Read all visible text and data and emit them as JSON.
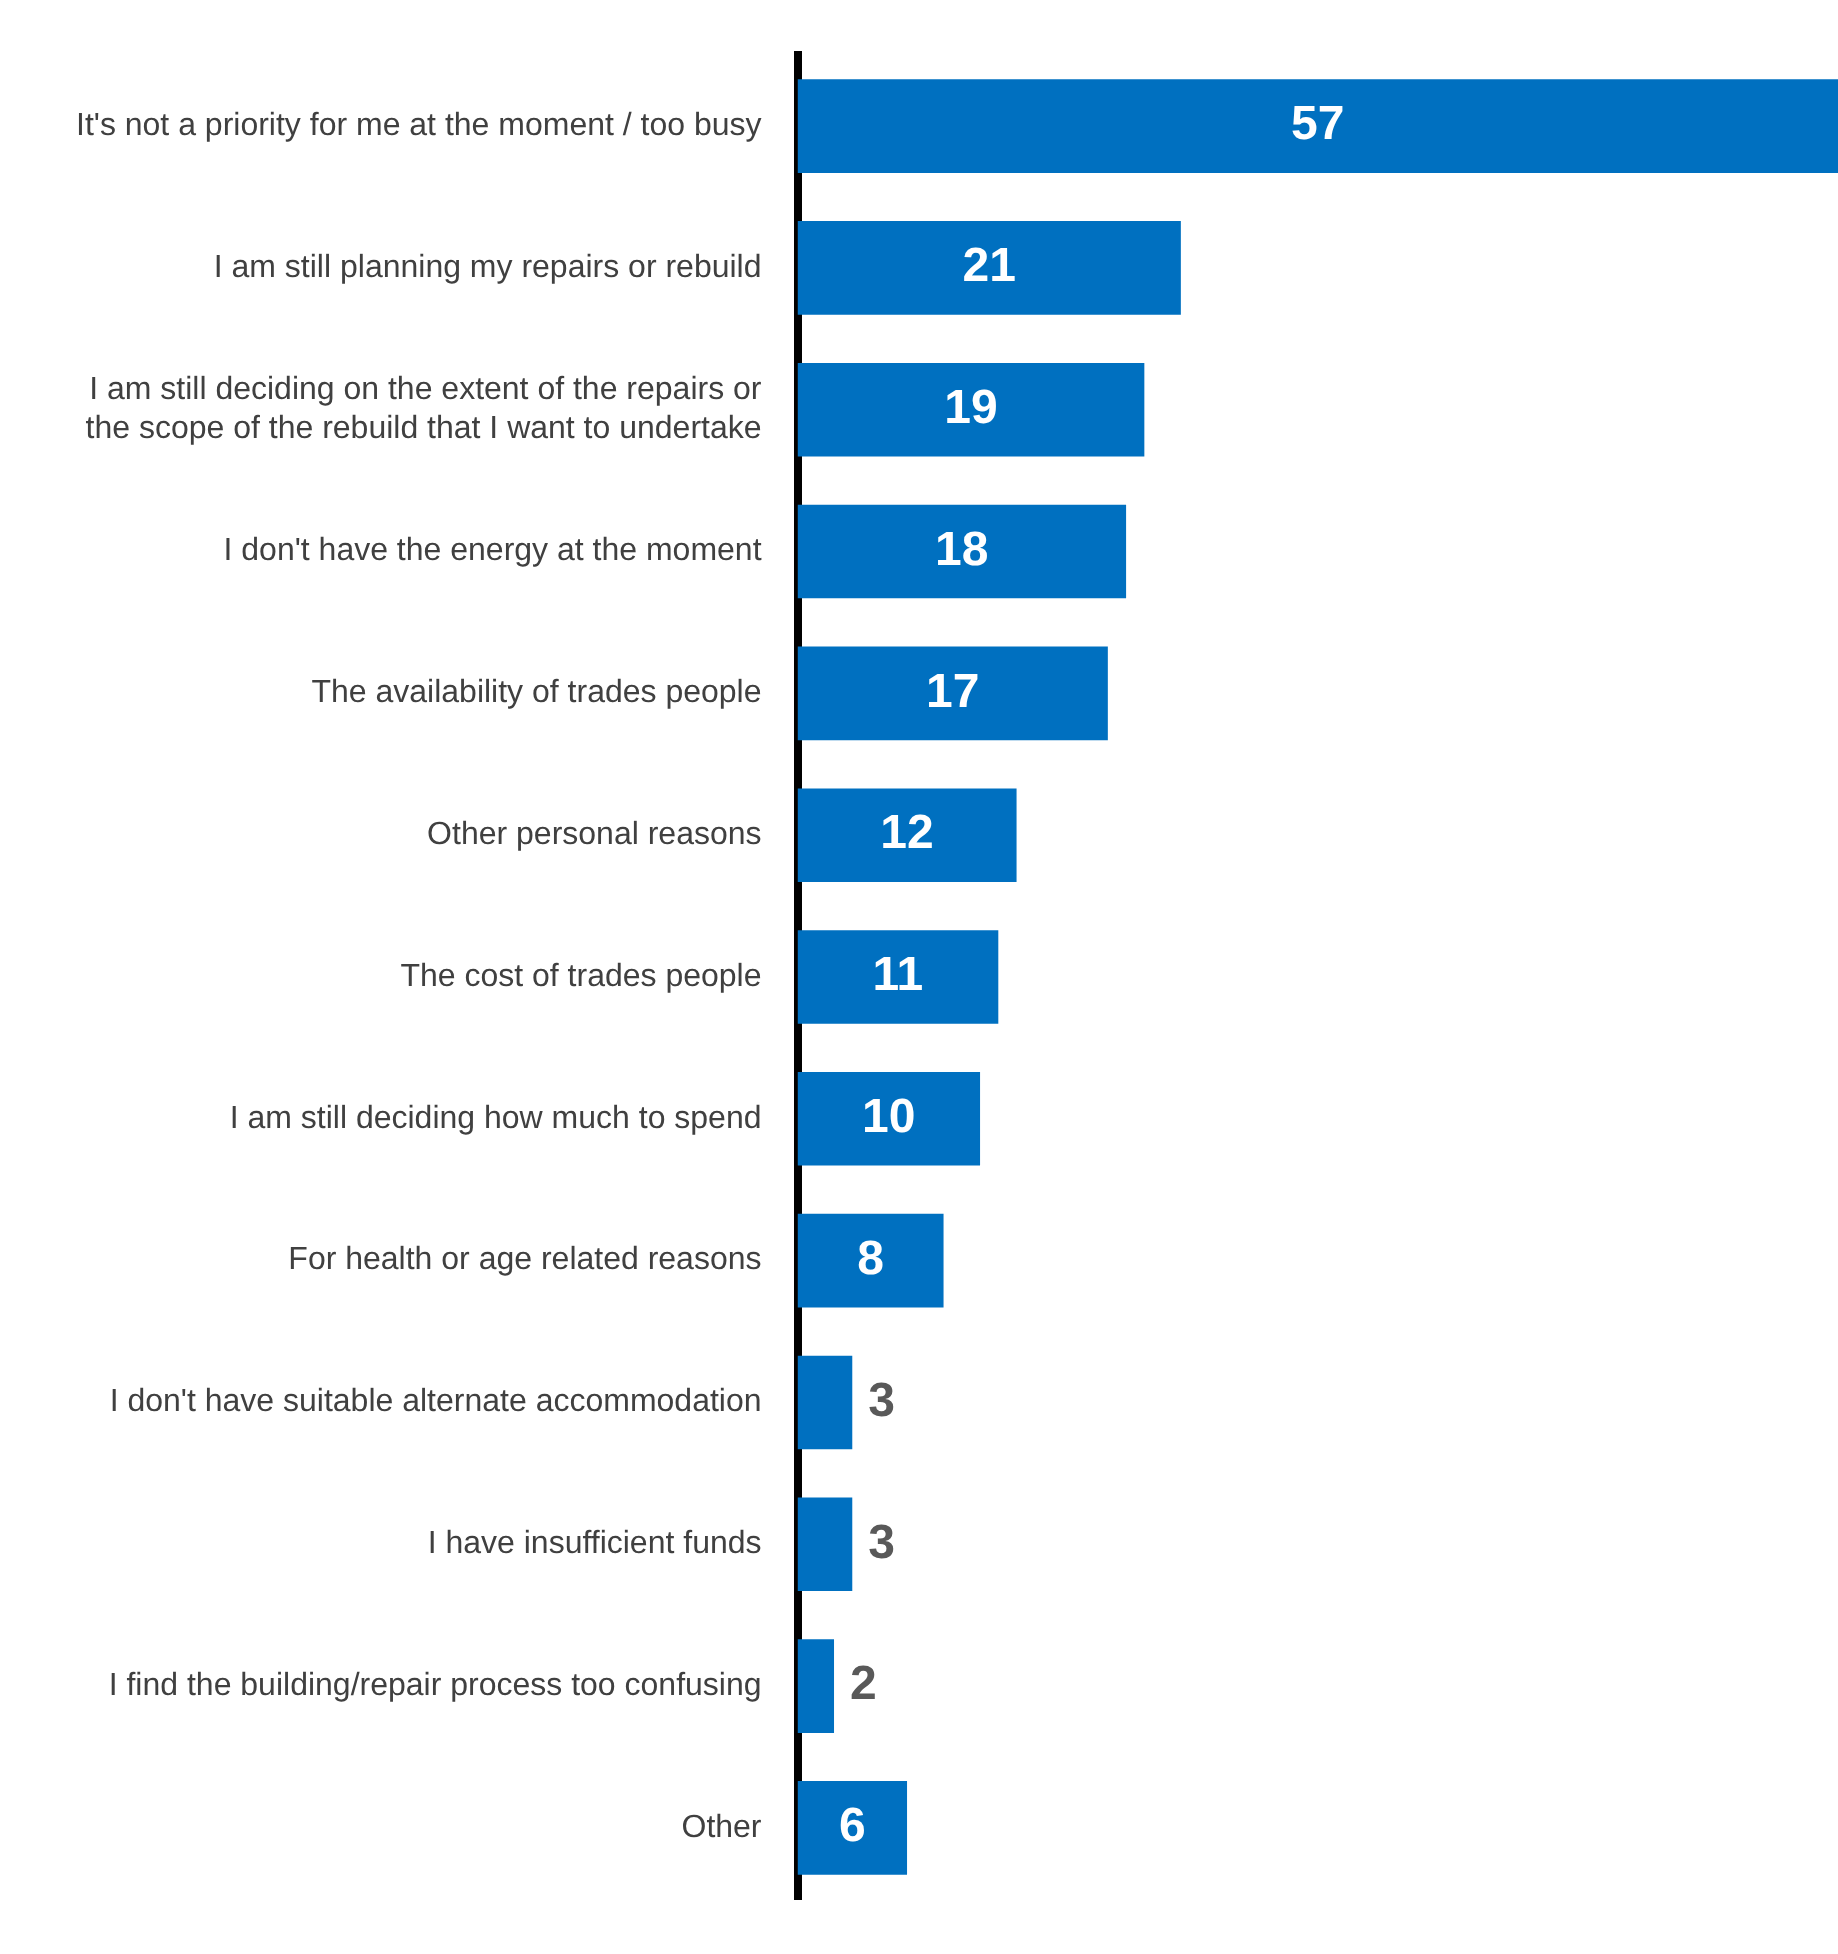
{
  "chart_data": {
    "type": "bar",
    "orientation": "horizontal",
    "tick_labels": "y",
    "data_labels": true,
    "legend": false,
    "color": "#0070c0",
    "categories": [
      "It's not a priority for me at the moment / too busy",
      "I am still planning my repairs or rebuild",
      "I am still deciding on the extent of the repairs or the scope of the rebuild that I want to undertake",
      "I don't have the energy at the moment",
      "The availability of trades people",
      "Other personal reasons",
      "The cost of trades people",
      "I am still deciding how much to spend",
      "For health or age related reasons",
      "I don't have suitable alternate accommodation",
      "I have insufficient funds",
      "I find the building/repair process too confusing",
      "Other"
    ],
    "values": [
      57,
      21,
      19,
      18,
      17,
      12,
      11,
      10,
      8,
      3,
      3,
      2,
      6
    ]
  }
}
